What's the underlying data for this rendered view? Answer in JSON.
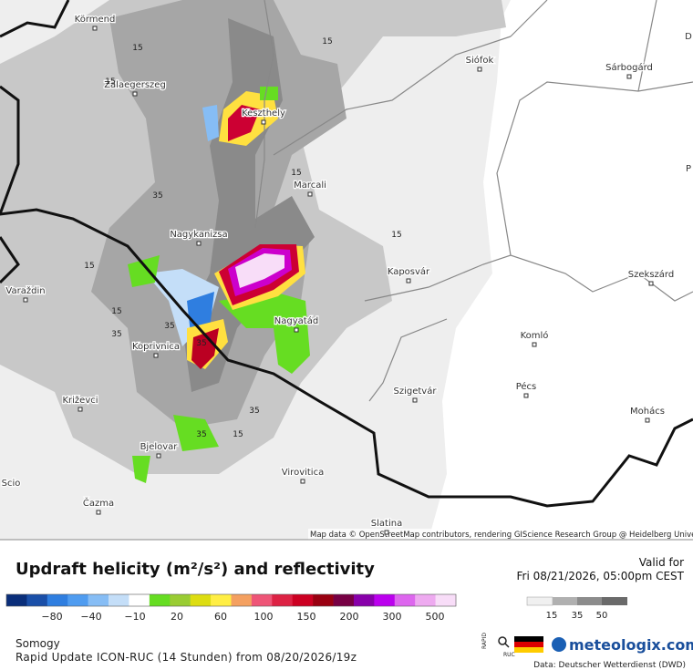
{
  "map": {
    "cities": [
      "Körmend",
      "Zalaegerszeg",
      "Keszthely",
      "Siófok",
      "Sárbogárd",
      "Marcali",
      "Nagykanizsa",
      "Kaposvár",
      "Szekszárd",
      "Varaždin",
      "Nagyatád",
      "Koprivnica",
      "Komló",
      "Pécs",
      "Križevci",
      "Szigetvár",
      "Mohács",
      "Bjelovar",
      "Virovitica",
      "Čazma",
      "Slatina",
      "Scio",
      "D",
      "P"
    ],
    "contour_labels": [
      "15",
      "15",
      "15",
      "15",
      "35",
      "15",
      "15",
      "15",
      "35",
      "35",
      "35",
      "35",
      "35",
      "15"
    ],
    "attribution": "Map data © OpenStreetMap contributors, rendering GIScience Research Group @ Heidelberg University"
  },
  "legend": {
    "title": "Updraft helicity (m²/s²) and reflectivity",
    "helicity_labels": [
      "−80",
      "−40",
      "−10",
      "20",
      "60",
      "100",
      "150",
      "200",
      "300",
      "500"
    ],
    "reflectivity_labels": [
      "15",
      "35",
      "50"
    ]
  },
  "valid": {
    "label": "Valid for",
    "time": "Fri 08/21/2026, 05:00pm CEST"
  },
  "footer": {
    "region": "Somogy",
    "model": "Rapid Update ICON-RUC (14 Stunden) from 08/20/2026/19z",
    "rapid": "RAPID",
    "ruc": "RUC",
    "brand": "meteologix.com",
    "source": "Data: Deutscher Wetterdienst (DWD)"
  }
}
